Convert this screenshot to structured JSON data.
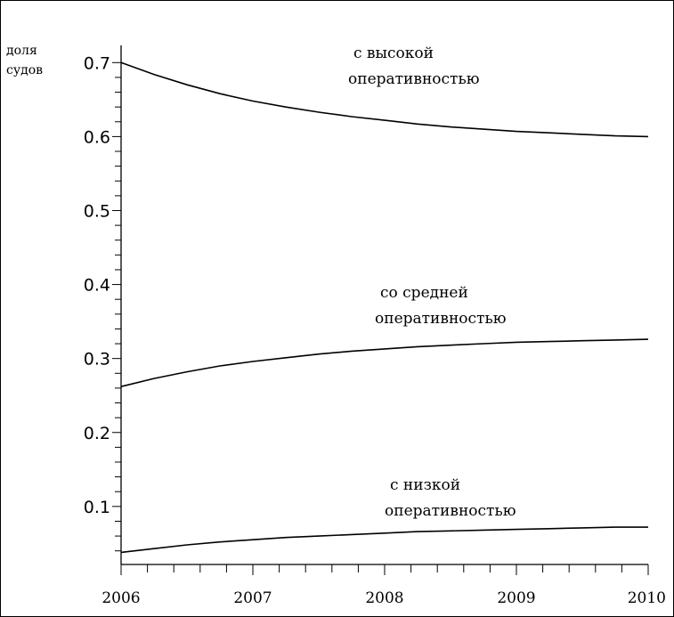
{
  "chart_data": {
    "type": "line",
    "ylabel_lines": [
      "доля",
      "судов"
    ],
    "xlim": [
      2006,
      2010
    ],
    "ylim": [
      0.03,
      0.71
    ],
    "x_ticks": [
      2006,
      2007,
      2008,
      2009,
      2010
    ],
    "x_tick_labels": [
      "2006",
      "2007",
      "2008",
      "2009",
      "2010"
    ],
    "y_ticks": [
      0.1,
      0.2,
      0.3,
      0.4,
      0.5,
      0.6,
      0.7
    ],
    "y_tick_labels": [
      "0.1",
      "0.2",
      "0.3",
      "0.4",
      "0.5",
      "0.6",
      "0.7"
    ],
    "x": [
      2006,
      2006.25,
      2006.5,
      2006.75,
      2007,
      2007.25,
      2007.5,
      2007.75,
      2008,
      2008.25,
      2008.5,
      2008.75,
      2009,
      2009.25,
      2009.5,
      2009.75,
      2010
    ],
    "series": [
      {
        "annotation": [
          "с высокой",
          "оперативностью"
        ],
        "values": [
          0.7,
          0.684,
          0.67,
          0.658,
          0.648,
          0.64,
          0.633,
          0.627,
          0.622,
          0.617,
          0.613,
          0.61,
          0.607,
          0.605,
          0.603,
          0.601,
          0.6
        ]
      },
      {
        "annotation": [
          "со средней",
          "оперативностью"
        ],
        "values": [
          0.262,
          0.273,
          0.282,
          0.29,
          0.296,
          0.301,
          0.306,
          0.31,
          0.313,
          0.316,
          0.318,
          0.32,
          0.322,
          0.323,
          0.324,
          0.325,
          0.326
        ]
      },
      {
        "annotation": [
          "с низкой",
          "оперативностью"
        ],
        "values": [
          0.038,
          0.043,
          0.048,
          0.052,
          0.055,
          0.058,
          0.06,
          0.062,
          0.064,
          0.066,
          0.067,
          0.068,
          0.069,
          0.07,
          0.071,
          0.072,
          0.072
        ]
      }
    ]
  }
}
